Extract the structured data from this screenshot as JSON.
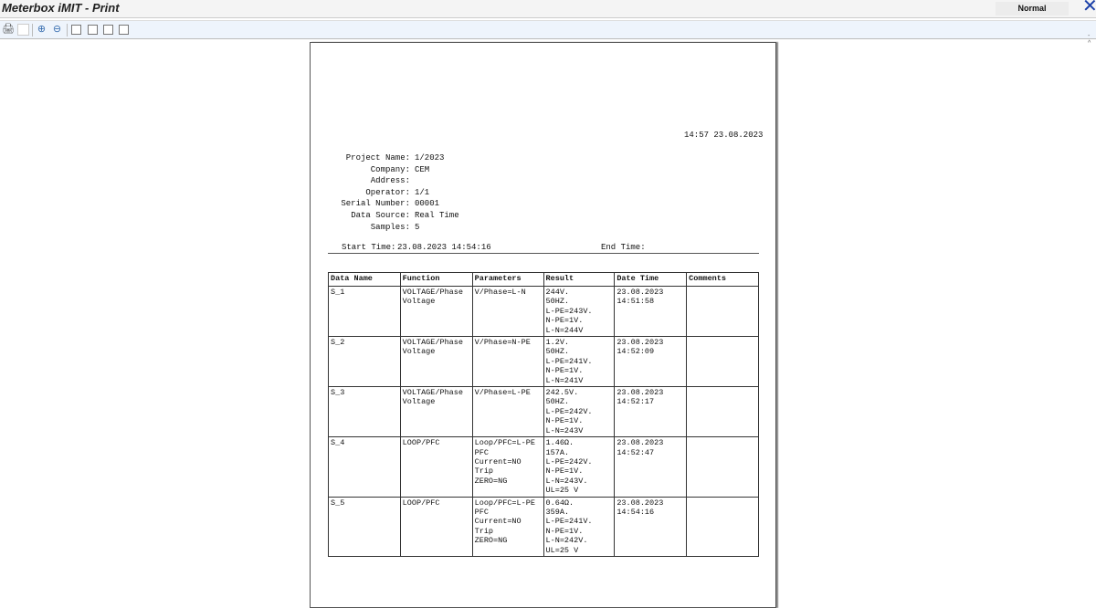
{
  "window": {
    "title": "Meterbox iMIT - Print",
    "mode": "Normal"
  },
  "toolbar": {
    "icons": [
      "print-icon",
      "page-setup-icon",
      "zoom-in-icon",
      "zoom-out-icon",
      "fit-page-icon",
      "fit-width-icon",
      "single-page-icon",
      "two-page-icon"
    ]
  },
  "report": {
    "timestamp": "14:57 23.08.2023",
    "fields": [
      {
        "label": "Project Name:",
        "value": "1/2023"
      },
      {
        "label": "Company:",
        "value": "CEM"
      },
      {
        "label": "Address:",
        "value": ""
      },
      {
        "label": "Operator:",
        "value": "1/1"
      },
      {
        "label": "Serial Number:",
        "value": "00001"
      },
      {
        "label": "Data Source:",
        "value": "Real Time"
      },
      {
        "label": "Samples:",
        "value": "5"
      }
    ],
    "start_time_label": "Start Time:",
    "start_time": "23.08.2023 14:54:16",
    "end_time_label": "End Time:",
    "end_time": "",
    "table": {
      "headers": [
        "Data Name",
        "Function",
        "Parameters",
        "Result",
        "Date Time",
        "Comments"
      ],
      "rows": [
        [
          "S_1",
          "VOLTAGE/Phase\nVoltage",
          "V/Phase=L-N",
          "244V.\n50HZ.\nL-PE=243V.\nN-PE=1V.\nL-N=244V",
          "23.08.2023\n14:51:58",
          ""
        ],
        [
          "S_2",
          "VOLTAGE/Phase\nVoltage",
          "V/Phase=N-PE",
          "1.2V.\n50HZ.\nL-PE=241V.\nN-PE=1V.\nL-N=241V",
          "23.08.2023\n14:52:09",
          ""
        ],
        [
          "S_3",
          "VOLTAGE/Phase\nVoltage",
          "V/Phase=L-PE",
          "242.5V.\n50HZ.\nL-PE=242V.\nN-PE=1V.\nL-N=243V",
          "23.08.2023\n14:52:17",
          ""
        ],
        [
          "S_4",
          "LOOP/PFC",
          "Loop/PFC=L-PE\nPFC\nCurrent=NO Trip\nZERO=NG",
          "1.46Ω.\n157A.\nL-PE=242V.\nN-PE=1V.\nL-N=243V.\nUL=25 V",
          "23.08.2023\n14:52:47",
          ""
        ],
        [
          "S_5",
          "LOOP/PFC",
          "Loop/PFC=L-PE\nPFC\nCurrent=NO Trip\nZERO=NG",
          "0.64Ω.\n359A.\nL-PE=241V.\nN-PE=1V.\nL-N=242V.\nUL=25 V",
          "23.08.2023\n14:54:16",
          ""
        ]
      ]
    }
  }
}
